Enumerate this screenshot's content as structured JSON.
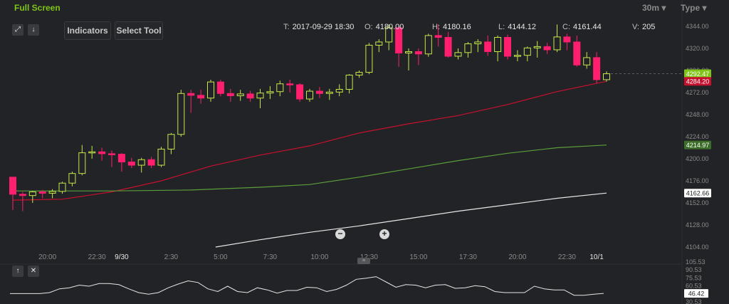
{
  "toolbar": {
    "fullscreen_label": "Full Screen",
    "timeframe_label": "30m",
    "type_label": "Type",
    "indicators_label": "Indicators",
    "select_tool_label": "Select Tool"
  },
  "ohlc": {
    "time_key": "T:",
    "time": "2017-09-29 18:30",
    "open_key": "O:",
    "open": "4180.00",
    "high_key": "H:",
    "high": "4180.16",
    "low_key": "L:",
    "low": "4144.12",
    "close_key": "C:",
    "close": "4161.44",
    "volume_key": "V:",
    "volume": "205"
  },
  "price_badges": [
    {
      "label": "4292.47",
      "value": 4292.47,
      "color": "#7fc416",
      "text_color": "#ffffff"
    },
    {
      "label": "4284.20",
      "value": 4284.2,
      "color": "#c8102e",
      "text_color": "#ffffff"
    },
    {
      "label": "4214.97",
      "value": 4214.97,
      "color": "#3d6e28",
      "text_color": "#ffffff"
    },
    {
      "label": "4162.66",
      "value": 4162.66,
      "color": "#ffffff",
      "text_color": "#222222"
    }
  ],
  "oscillator_badge": {
    "label": "46.42",
    "value": 46.42,
    "color": "#ffffff",
    "text_color": "#222222"
  },
  "chart_data": [
    {
      "type": "candlestick",
      "x_tick_labels": [
        "20:00",
        "22:30",
        "9/30",
        "2:30",
        "5:00",
        "7:30",
        "10:00",
        "12:30",
        "15:00",
        "17:30",
        "20:00",
        "22:30",
        "10/1"
      ],
      "x_tick_positions": [
        3.5,
        8.5,
        11,
        16,
        21,
        26,
        31,
        36,
        41,
        46,
        51,
        56,
        59
      ],
      "y_ticks": [
        "4344.00",
        "4320.00",
        "4296.00",
        "4272.00",
        "4248.00",
        "4224.00",
        "4200.00",
        "4176.00",
        "4152.00",
        "4128.00",
        "4104.00"
      ],
      "ylim": [
        4104,
        4344
      ],
      "current_price_line": 4292.47,
      "candles": [
        {
          "o": 4180.0,
          "h": 4180.16,
          "l": 4144.12,
          "c": 4161.44
        },
        {
          "o": 4161.4,
          "h": 4164,
          "l": 4143,
          "c": 4160.0
        },
        {
          "o": 4160.0,
          "h": 4165,
          "l": 4152,
          "c": 4164.0
        },
        {
          "o": 4164.0,
          "h": 4166,
          "l": 4157,
          "c": 4162.5
        },
        {
          "o": 4162.5,
          "h": 4167,
          "l": 4157,
          "c": 4164.5
        },
        {
          "o": 4164.5,
          "h": 4175,
          "l": 4162,
          "c": 4173.5
        },
        {
          "o": 4173.5,
          "h": 4186,
          "l": 4170,
          "c": 4184.0
        },
        {
          "o": 4184.0,
          "h": 4215,
          "l": 4182,
          "c": 4206.5
        },
        {
          "o": 4206.5,
          "h": 4214,
          "l": 4200,
          "c": 4207.5
        },
        {
          "o": 4207.5,
          "h": 4212,
          "l": 4198,
          "c": 4205.5
        },
        {
          "o": 4205.5,
          "h": 4209,
          "l": 4191,
          "c": 4205.0
        },
        {
          "o": 4205.0,
          "h": 4206,
          "l": 4186,
          "c": 4196.5
        },
        {
          "o": 4196.5,
          "h": 4201,
          "l": 4190,
          "c": 4193.0
        },
        {
          "o": 4193.0,
          "h": 4201,
          "l": 4185,
          "c": 4199.0
        },
        {
          "o": 4199.0,
          "h": 4202,
          "l": 4190,
          "c": 4193.0
        },
        {
          "o": 4193.0,
          "h": 4213,
          "l": 4191,
          "c": 4210.5
        },
        {
          "o": 4210.5,
          "h": 4228,
          "l": 4205,
          "c": 4226.5
        },
        {
          "o": 4226.5,
          "h": 4275,
          "l": 4224,
          "c": 4271.0
        },
        {
          "o": 4271.0,
          "h": 4275,
          "l": 4250,
          "c": 4269.0
        },
        {
          "o": 4269.0,
          "h": 4275,
          "l": 4260,
          "c": 4266.0
        },
        {
          "o": 4266.0,
          "h": 4286,
          "l": 4262,
          "c": 4283.5
        },
        {
          "o": 4283.5,
          "h": 4286,
          "l": 4268,
          "c": 4271.0
        },
        {
          "o": 4271.0,
          "h": 4276,
          "l": 4262,
          "c": 4268.5
        },
        {
          "o": 4268.5,
          "h": 4275,
          "l": 4263,
          "c": 4270.5
        },
        {
          "o": 4270.5,
          "h": 4274,
          "l": 4262,
          "c": 4266.0
        },
        {
          "o": 4266.0,
          "h": 4276,
          "l": 4255,
          "c": 4271.5
        },
        {
          "o": 4271.5,
          "h": 4279,
          "l": 4265,
          "c": 4273.0
        },
        {
          "o": 4273.0,
          "h": 4285,
          "l": 4268,
          "c": 4281.5
        },
        {
          "o": 4281.5,
          "h": 4286,
          "l": 4272,
          "c": 4280.5
        },
        {
          "o": 4280.5,
          "h": 4282,
          "l": 4262,
          "c": 4265.0
        },
        {
          "o": 4265.0,
          "h": 4276,
          "l": 4262,
          "c": 4273.5
        },
        {
          "o": 4273.5,
          "h": 4278,
          "l": 4266,
          "c": 4271.0
        },
        {
          "o": 4271.0,
          "h": 4276,
          "l": 4264,
          "c": 4272.5
        },
        {
          "o": 4272.5,
          "h": 4281,
          "l": 4268,
          "c": 4275.5
        },
        {
          "o": 4275.5,
          "h": 4292,
          "l": 4271,
          "c": 4291.0
        },
        {
          "o": 4291.0,
          "h": 4296,
          "l": 4288,
          "c": 4294.0
        },
        {
          "o": 4294.0,
          "h": 4326,
          "l": 4292,
          "c": 4323.5
        },
        {
          "o": 4323.5,
          "h": 4330,
          "l": 4316,
          "c": 4327.0
        },
        {
          "o": 4327.0,
          "h": 4346,
          "l": 4318,
          "c": 4342.5
        },
        {
          "o": 4342.5,
          "h": 4346,
          "l": 4300,
          "c": 4315.0
        },
        {
          "o": 4315.0,
          "h": 4320,
          "l": 4296,
          "c": 4316.5
        },
        {
          "o": 4316.5,
          "h": 4320,
          "l": 4302,
          "c": 4314.0
        },
        {
          "o": 4314.0,
          "h": 4336,
          "l": 4311,
          "c": 4334.0
        },
        {
          "o": 4334.0,
          "h": 4346,
          "l": 4322,
          "c": 4332.0
        },
        {
          "o": 4332.0,
          "h": 4338,
          "l": 4310,
          "c": 4311.5
        },
        {
          "o": 4311.5,
          "h": 4320,
          "l": 4308,
          "c": 4315.5
        },
        {
          "o": 4315.5,
          "h": 4327,
          "l": 4310,
          "c": 4325.0
        },
        {
          "o": 4325.0,
          "h": 4330,
          "l": 4316,
          "c": 4327.0
        },
        {
          "o": 4327.0,
          "h": 4334,
          "l": 4312,
          "c": 4316.5
        },
        {
          "o": 4316.5,
          "h": 4334,
          "l": 4306,
          "c": 4332.0
        },
        {
          "o": 4332.0,
          "h": 4335,
          "l": 4308,
          "c": 4311.5
        },
        {
          "o": 4311.5,
          "h": 4318,
          "l": 4306,
          "c": 4312.5
        },
        {
          "o": 4312.5,
          "h": 4322,
          "l": 4306,
          "c": 4320.5
        },
        {
          "o": 4320.5,
          "h": 4328,
          "l": 4310,
          "c": 4322.0
        },
        {
          "o": 4322.0,
          "h": 4326,
          "l": 4314,
          "c": 4318.5
        },
        {
          "o": 4318.5,
          "h": 4346,
          "l": 4316,
          "c": 4332.5
        },
        {
          "o": 4332.5,
          "h": 4336,
          "l": 4318,
          "c": 4327.0
        },
        {
          "o": 4327.0,
          "h": 4334,
          "l": 4300,
          "c": 4302.0
        },
        {
          "o": 4302.0,
          "h": 4316,
          "l": 4298,
          "c": 4310.0
        },
        {
          "o": 4310.0,
          "h": 4316,
          "l": 4282,
          "c": 4286.0
        },
        {
          "o": 4286.0,
          "h": 4295,
          "l": 4284,
          "c": 4292.47
        }
      ],
      "series": [
        {
          "name": "",
          "color": "#c8102e",
          "points": [
            [
              0,
              4155
            ],
            [
              5,
              4156
            ],
            [
              10,
              4164
            ],
            [
              15,
              4176
            ],
            [
              20,
              4192
            ],
            [
              25,
              4204
            ],
            [
              30,
              4214
            ],
            [
              35,
              4228
            ],
            [
              40,
              4238
            ],
            [
              45,
              4247
            ],
            [
              50,
              4259
            ],
            [
              55,
              4273
            ],
            [
              60,
              4284.2
            ]
          ]
        },
        {
          "name": "",
          "color": "#5a9e3a",
          "points": [
            [
              0,
              4165
            ],
            [
              10,
              4165
            ],
            [
              18,
              4166
            ],
            [
              25,
              4169
            ],
            [
              30,
              4172
            ],
            [
              35,
              4180
            ],
            [
              40,
              4189
            ],
            [
              45,
              4198
            ],
            [
              50,
              4206
            ],
            [
              55,
              4212
            ],
            [
              60,
              4214.97
            ]
          ]
        },
        {
          "name": "",
          "color": "#e6e6e6",
          "points": [
            [
              20.5,
              4104
            ],
            [
              25,
              4112
            ],
            [
              30,
              4120
            ],
            [
              35,
              4127
            ],
            [
              40,
              4135
            ],
            [
              45,
              4143
            ],
            [
              50,
              4150
            ],
            [
              55,
              4157
            ],
            [
              60,
              4162.66
            ]
          ]
        }
      ]
    },
    {
      "type": "line",
      "y_ticks": [
        "105.53",
        "90.53",
        "75.53",
        "60.53",
        "45.53",
        "30.53"
      ],
      "ylim": [
        30.53,
        105.53
      ],
      "values": [
        46,
        46,
        46,
        46,
        48,
        55,
        57,
        62,
        60,
        65,
        65,
        63,
        55,
        48,
        45,
        48,
        57,
        64,
        70,
        67,
        55,
        50,
        60,
        50,
        48,
        57,
        53,
        47,
        52,
        52,
        58,
        57,
        50,
        54,
        62,
        73,
        75,
        78,
        68,
        58,
        63,
        62,
        57,
        62,
        63,
        56,
        57,
        61,
        59,
        50,
        48,
        48,
        48,
        60,
        55,
        53,
        53,
        43,
        43,
        45,
        46.42
      ]
    }
  ]
}
